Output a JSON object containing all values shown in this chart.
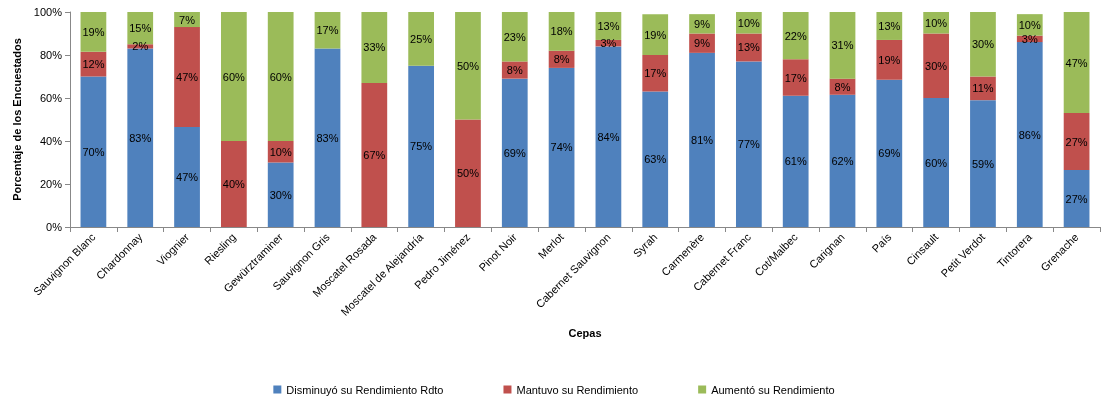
{
  "chart_data": {
    "type": "bar",
    "stacked": true,
    "xlabel": "Cepas",
    "ylabel": "Porcentaje de los Encuestados",
    "categories": [
      "Sauvignon Blanc",
      "Chardonnay",
      "Viognier",
      "Riesling",
      "Gewürztraminer",
      "Sauvignon Gris",
      "Moscatel Rosada",
      "Moscatel de Alejandría",
      "Pedro Jiménez",
      "Pinot Noir",
      "Merlot",
      "Cabernet Sauvignon",
      "Syrah",
      "Carmenère",
      "Cabernet Franc",
      "Cot/Malbec",
      "Carignan",
      "País",
      "Cinsault",
      "Petit Verdot",
      "Tintorera",
      "Grenache"
    ],
    "series": [
      {
        "name": "Disminuyó su Rendimiento Rdto",
        "color": "#4f81bd",
        "values": [
          70,
          83,
          46.5,
          null,
          30,
          83,
          null,
          75,
          null,
          69,
          74,
          84,
          63,
          81,
          77,
          61,
          61.5,
          68.5,
          60,
          59,
          86,
          26.5
        ],
        "value_labels": [
          "70%",
          "83%",
          "47%",
          null,
          "30%",
          "83%",
          null,
          "75%",
          null,
          "69%",
          "74%",
          "84%",
          "63%",
          "81%",
          "77%",
          "61%",
          "62%",
          "69%",
          "60%",
          "59%",
          "86%",
          "27%"
        ]
      },
      {
        "name": "Mantuvo su Rendimiento",
        "color": "#c0504d",
        "values": [
          11.5,
          2,
          46.5,
          40,
          10,
          null,
          67,
          null,
          50,
          8,
          8,
          3,
          17,
          9,
          13,
          17,
          7.5,
          18.5,
          30,
          11,
          3,
          26.5
        ],
        "value_labels": [
          "12%",
          "2%",
          "47%",
          "40%",
          "10%",
          null,
          "67%",
          null,
          "50%",
          "8%",
          "8%",
          "3%",
          "17%",
          "9%",
          "13%",
          "17%",
          "8%",
          "19%",
          "30%",
          "11%",
          "3%",
          "27%"
        ]
      },
      {
        "name": "Aumentó su Rendimiento",
        "color": "#9bbb59",
        "values": [
          18.5,
          15,
          7,
          60,
          60,
          17,
          33,
          25,
          50,
          23,
          18,
          13,
          19,
          9,
          10,
          22,
          31,
          13,
          10,
          30,
          10,
          47
        ],
        "value_labels": [
          "19%",
          "15%",
          "7%",
          "60%",
          "60%",
          "17%",
          "33%",
          "25%",
          "50%",
          "23%",
          "18%",
          "13%",
          "19%",
          "9%",
          "10%",
          "22%",
          "31%",
          "13%",
          "10%",
          "30%",
          "10%",
          "47%"
        ]
      }
    ],
    "ylim": [
      0,
      100
    ],
    "yticks": [
      {
        "value": 0,
        "label": "0%"
      },
      {
        "value": 20,
        "label": "20%"
      },
      {
        "value": 40,
        "label": "40%"
      },
      {
        "value": 60,
        "label": "60%"
      },
      {
        "value": 80,
        "label": "80%"
      },
      {
        "value": 100,
        "label": "100%"
      }
    ],
    "grid": false,
    "legend": "bottom"
  }
}
